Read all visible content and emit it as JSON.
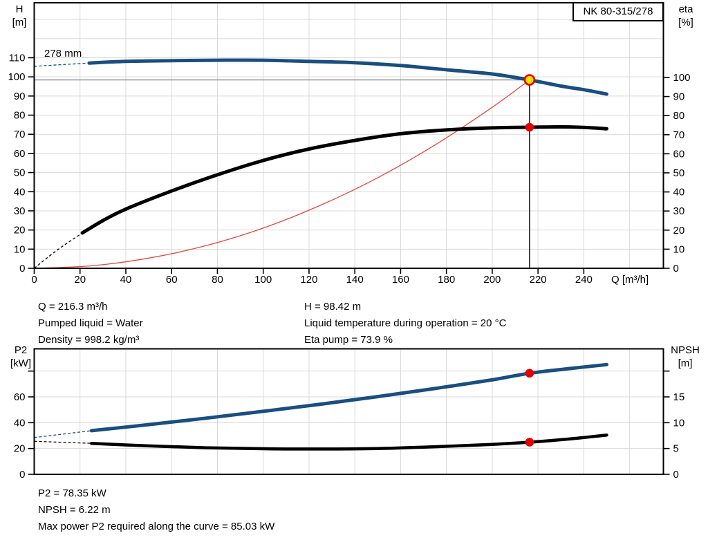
{
  "title_box": "NK 80-315/278",
  "colors": {
    "curve_blue": "#1a4e80",
    "curve_black": "#000000",
    "system_red": "#e8463c",
    "marker_red": "#e60000",
    "marker_yellow": "#ffe000",
    "grid": "#d9d9d9",
    "ref_gray": "#8c8c8c",
    "frame": "#000000"
  },
  "chart_data": [
    {
      "type": "line",
      "curve_label": "278 mm",
      "ylabel_left": "H\n[m]",
      "ylabel_right": "eta\n[%]",
      "xlabel": "Q [m³/h]",
      "xlim": [
        0,
        275
      ],
      "h_lim": [
        0,
        138.5
      ],
      "eta_lim": [
        0,
        100
      ],
      "x_ticks": [
        0,
        20,
        40,
        60,
        80,
        100,
        120,
        140,
        160,
        180,
        200,
        220,
        240
      ],
      "h_ticks": [
        0,
        10,
        20,
        30,
        40,
        50,
        60,
        70,
        80,
        90,
        100,
        110
      ],
      "eta_ticks": [
        0,
        10,
        20,
        30,
        40,
        50,
        60,
        70,
        80,
        90,
        100
      ],
      "grid": "on",
      "series": [
        {
          "name": "head_curve_278mm",
          "axis": "H",
          "color_key": "curve_blue",
          "width": 5,
          "dash_lead": [
            [
              0,
              105.5
            ],
            [
              12,
              106.4
            ],
            [
              24,
              107.2
            ]
          ],
          "points": [
            [
              24,
              107.2
            ],
            [
              40,
              108.1
            ],
            [
              60,
              108.5
            ],
            [
              80,
              108.7
            ],
            [
              100,
              108.7
            ],
            [
              120,
              108.1
            ],
            [
              140,
              107.4
            ],
            [
              160,
              105.9
            ],
            [
              180,
              103.7
            ],
            [
              200,
              101.5
            ],
            [
              216.3,
              98.42
            ],
            [
              230,
              95.2
            ],
            [
              240,
              93.3
            ],
            [
              250,
              91.0
            ]
          ]
        },
        {
          "name": "efficiency_curve",
          "axis": "eta",
          "color_key": "curve_black",
          "width": 5,
          "dash_lead": [
            [
              0,
              0
            ],
            [
              10,
              9.5
            ],
            [
              21,
              18.5
            ]
          ],
          "points": [
            [
              21,
              18.5
            ],
            [
              30,
              25
            ],
            [
              40,
              31
            ],
            [
              60,
              40.5
            ],
            [
              80,
              49
            ],
            [
              100,
              56.5
            ],
            [
              120,
              62.5
            ],
            [
              140,
              67
            ],
            [
              160,
              70.5
            ],
            [
              180,
              72.5
            ],
            [
              200,
              73.6
            ],
            [
              216.3,
              73.9
            ],
            [
              230,
              74.1
            ],
            [
              240,
              73.8
            ],
            [
              250,
              73.1
            ]
          ]
        },
        {
          "name": "system_curve",
          "axis": "H",
          "color_key": "system_red",
          "width": 1.3,
          "points": [
            [
              0,
              0
            ],
            [
              25,
              1.3
            ],
            [
              50,
              5.3
            ],
            [
              75,
              11.8
            ],
            [
              100,
              21.0
            ],
            [
              125,
              32.9
            ],
            [
              150,
              47.3
            ],
            [
              175,
              64.4
            ],
            [
              200,
              84.1
            ],
            [
              216.3,
              98.42
            ]
          ]
        }
      ],
      "duty_point": {
        "Q": 216.3,
        "H": 98.42,
        "eta": 73.9
      }
    },
    {
      "type": "line",
      "ylabel_left": "P2\n[kW]",
      "ylabel_right": "NPSH\n[m]",
      "xlim": [
        0,
        275
      ],
      "p2_lim": [
        0,
        97
      ],
      "npsh_lim": [
        0,
        24
      ],
      "p2_ticks_labeled": [
        0,
        20,
        40,
        60
      ],
      "p2_ticks_unlabeled": [
        80
      ],
      "npsh_ticks_labeled": [
        0,
        5,
        10,
        15
      ],
      "npsh_ticks_unlabeled": [
        20
      ],
      "grid": "on",
      "series": [
        {
          "name": "p2_curve",
          "axis": "P2",
          "color_key": "curve_blue",
          "width": 5,
          "dash_lead": [
            [
              0,
              28.5
            ],
            [
              25,
              33.8
            ]
          ],
          "points": [
            [
              25,
              33.8
            ],
            [
              50,
              38.5
            ],
            [
              75,
              43.5
            ],
            [
              100,
              48.8
            ],
            [
              125,
              54.3
            ],
            [
              150,
              60.2
            ],
            [
              175,
              66.5
            ],
            [
              200,
              73.2
            ],
            [
              216.3,
              78.35
            ],
            [
              235,
              82.2
            ],
            [
              250,
              85.0
            ]
          ]
        },
        {
          "name": "npsh_curve",
          "axis": "NPSH",
          "color_key": "curve_black",
          "width": 4.5,
          "dash_lead": [
            [
              0,
              6.4
            ],
            [
              25,
              6.0
            ]
          ],
          "points": [
            [
              25,
              6.0
            ],
            [
              50,
              5.5
            ],
            [
              75,
              5.15
            ],
            [
              100,
              4.95
            ],
            [
              125,
              4.9
            ],
            [
              150,
              5.0
            ],
            [
              175,
              5.35
            ],
            [
              200,
              5.8
            ],
            [
              216.3,
              6.22
            ],
            [
              235,
              6.9
            ],
            [
              250,
              7.6
            ]
          ]
        }
      ],
      "duty_point": {
        "Q": 216.3,
        "P2": 78.35,
        "NPSH": 6.22
      }
    }
  ],
  "info_top_left": [
    "Q = 216.3 m³/h",
    "Pumped liquid = Water",
    "Density = 998.2 kg/m³"
  ],
  "info_top_right": [
    "H = 98.42 m",
    "Liquid temperature during operation = 20 °C",
    "Eta pump = 73.9 %"
  ],
  "info_bottom": [
    "P2 = 78.35 kW",
    "NPSH = 6.22 m",
    "Max power P2 required along the curve = 85.03 kW"
  ]
}
